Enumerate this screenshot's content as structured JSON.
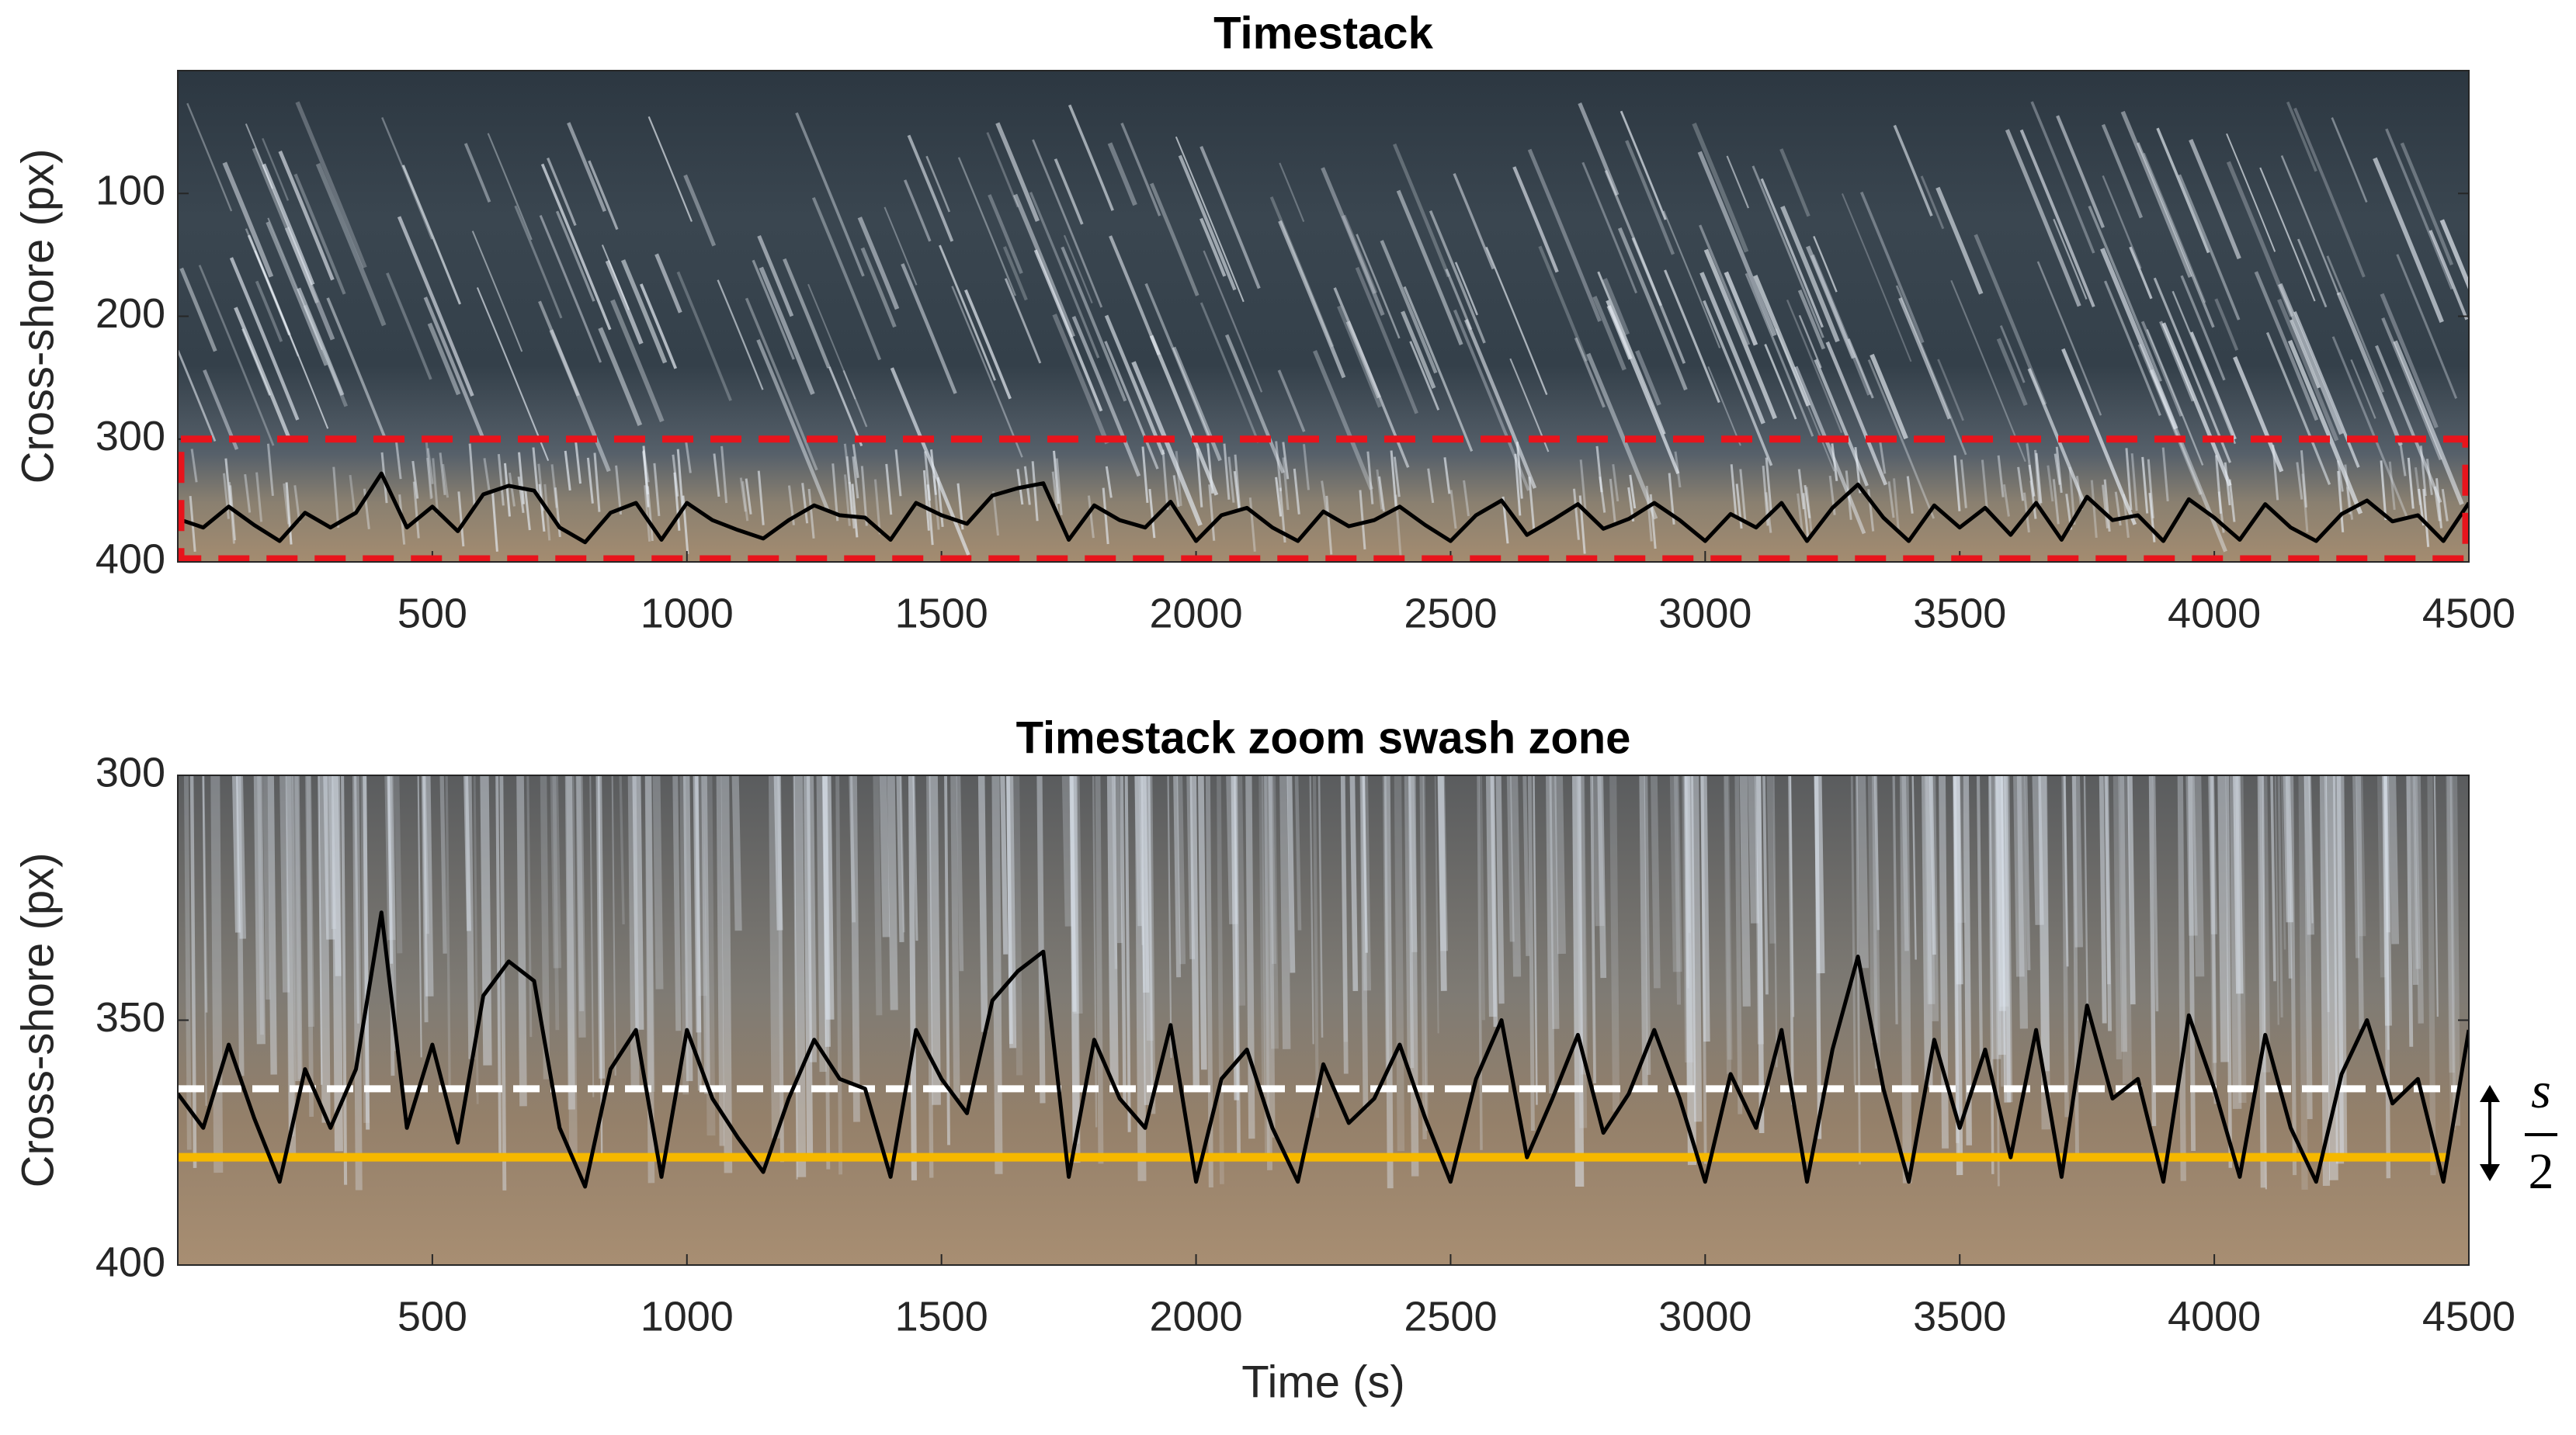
{
  "chart_data": [
    {
      "type": "line",
      "title": "Timestack",
      "ylabel": "Cross-shore (px)",
      "xlim": [
        0,
        4500
      ],
      "xticks": [
        500,
        1000,
        1500,
        2000,
        2500,
        3000,
        3500,
        4000,
        4500
      ],
      "ylim": [
        0,
        400
      ],
      "yticks": [
        100,
        200,
        300,
        400
      ],
      "y_reversed": true,
      "color": "#000000",
      "highlight_ylim": [
        300,
        400
      ],
      "highlight_color": "#e8141c",
      "x": [
        0,
        50,
        100,
        150,
        200,
        250,
        300,
        350,
        400,
        450,
        500,
        550,
        600,
        650,
        700,
        750,
        800,
        850,
        900,
        950,
        1000,
        1050,
        1100,
        1150,
        1200,
        1250,
        1300,
        1350,
        1400,
        1450,
        1500,
        1550,
        1600,
        1650,
        1700,
        1750,
        1800,
        1850,
        1900,
        1950,
        2000,
        2050,
        2100,
        2150,
        2200,
        2250,
        2300,
        2350,
        2400,
        2450,
        2500,
        2550,
        2600,
        2650,
        2700,
        2750,
        2800,
        2850,
        2900,
        2950,
        3000,
        3050,
        3100,
        3150,
        3200,
        3250,
        3300,
        3350,
        3400,
        3450,
        3500,
        3550,
        3600,
        3650,
        3700,
        3750,
        3800,
        3850,
        3900,
        3950,
        4000,
        4050,
        4100,
        4150,
        4200,
        4250,
        4300,
        4350,
        4400,
        4450,
        4500
      ],
      "values": [
        365,
        372,
        355,
        370,
        383,
        360,
        372,
        360,
        328,
        372,
        355,
        375,
        345,
        338,
        342,
        372,
        384,
        360,
        352,
        382,
        352,
        366,
        374,
        381,
        366,
        354,
        362,
        364,
        382,
        352,
        362,
        369,
        346,
        340,
        336,
        382,
        354,
        366,
        372,
        351,
        383,
        362,
        356,
        372,
        383,
        359,
        371,
        366,
        355,
        370,
        383,
        362,
        350,
        378,
        366,
        353,
        373,
        365,
        352,
        366,
        383,
        361,
        372,
        352,
        383,
        356,
        337,
        364,
        383,
        354,
        372,
        356,
        378,
        352,
        382,
        347,
        366,
        362,
        383,
        349,
        364,
        382,
        353,
        372,
        383,
        361,
        350,
        367,
        362,
        383,
        352
      ]
    },
    {
      "type": "line",
      "title": "Timestack zoom swash zone",
      "ylabel": "Cross-shore (px)",
      "xlabel": "Time (s)",
      "xlim": [
        0,
        4500
      ],
      "xticks": [
        500,
        1000,
        1500,
        2000,
        2500,
        3000,
        3500,
        4000,
        4500
      ],
      "ylim": [
        300,
        400
      ],
      "yticks": [
        300,
        350,
        400
      ],
      "y_reversed": true,
      "color": "#000000",
      "reference_lines": [
        {
          "value": 364,
          "color": "#ffffff",
          "style": "dashed"
        },
        {
          "value": 378,
          "color": "#f5b800",
          "style": "solid"
        }
      ],
      "annotation": {
        "numerator": "s",
        "denominator": "2"
      },
      "x": [
        0,
        50,
        100,
        150,
        200,
        250,
        300,
        350,
        400,
        450,
        500,
        550,
        600,
        650,
        700,
        750,
        800,
        850,
        900,
        950,
        1000,
        1050,
        1100,
        1150,
        1200,
        1250,
        1300,
        1350,
        1400,
        1450,
        1500,
        1550,
        1600,
        1650,
        1700,
        1750,
        1800,
        1850,
        1900,
        1950,
        2000,
        2050,
        2100,
        2150,
        2200,
        2250,
        2300,
        2350,
        2400,
        2450,
        2500,
        2550,
        2600,
        2650,
        2700,
        2750,
        2800,
        2850,
        2900,
        2950,
        3000,
        3050,
        3100,
        3150,
        3200,
        3250,
        3300,
        3350,
        3400,
        3450,
        3500,
        3550,
        3600,
        3650,
        3700,
        3750,
        3800,
        3850,
        3900,
        3950,
        4000,
        4050,
        4100,
        4150,
        4200,
        4250,
        4300,
        4350,
        4400,
        4450,
        4500
      ],
      "values": [
        365,
        372,
        355,
        370,
        383,
        360,
        372,
        360,
        328,
        372,
        355,
        375,
        345,
        338,
        342,
        372,
        384,
        360,
        352,
        382,
        352,
        366,
        374,
        381,
        366,
        354,
        362,
        364,
        382,
        352,
        362,
        369,
        346,
        340,
        336,
        382,
        354,
        366,
        372,
        351,
        383,
        362,
        356,
        372,
        383,
        359,
        371,
        366,
        355,
        370,
        383,
        362,
        350,
        378,
        366,
        353,
        373,
        365,
        352,
        366,
        383,
        361,
        372,
        352,
        383,
        356,
        337,
        364,
        383,
        354,
        372,
        356,
        378,
        352,
        382,
        347,
        366,
        362,
        383,
        349,
        364,
        382,
        353,
        372,
        383,
        361,
        350,
        367,
        362,
        383,
        352
      ]
    }
  ]
}
